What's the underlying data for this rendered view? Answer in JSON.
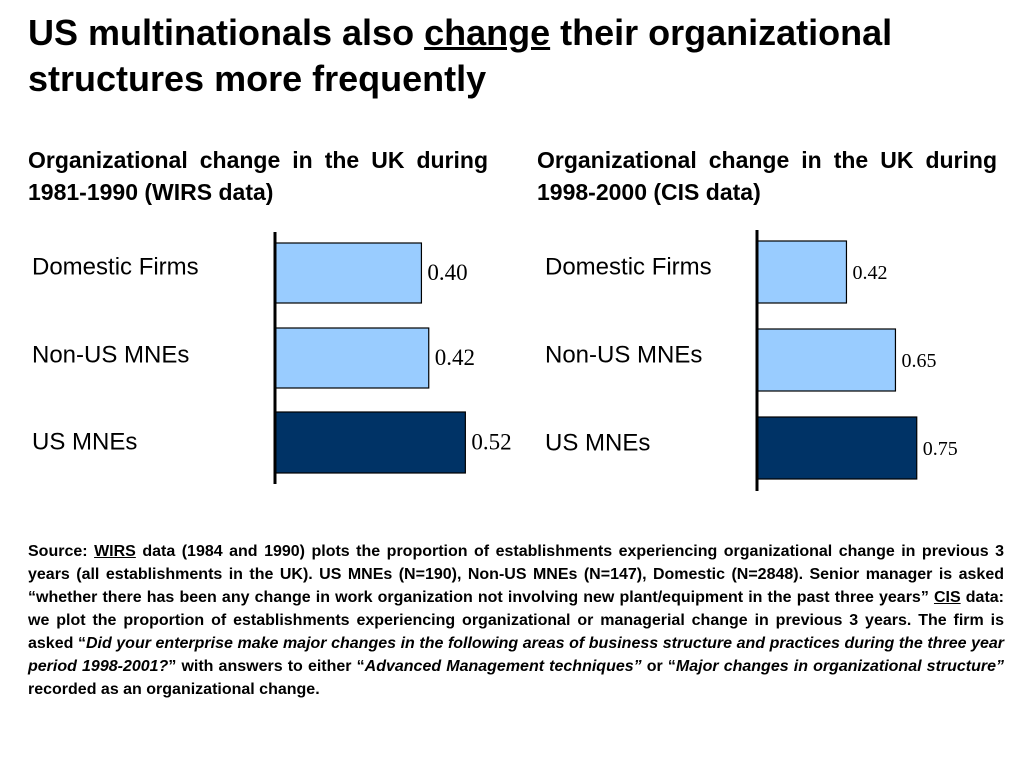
{
  "title": {
    "before": "US multinationals also ",
    "underlined": "change",
    "after": " their organizational structures more frequently"
  },
  "chart_data": [
    {
      "type": "bar",
      "orientation": "horizontal",
      "title": "Organizational change in the UK during 1981-1990 (WIRS data)",
      "categories": [
        "Domestic Firms",
        "Non-US MNEs",
        "US MNEs"
      ],
      "values": [
        0.4,
        0.42,
        0.52
      ],
      "value_labels": [
        "0.40",
        "0.42",
        "0.52"
      ],
      "colors": [
        "#99ccff",
        "#99ccff",
        "#003366"
      ],
      "xlim": [
        0,
        0.56
      ]
    },
    {
      "type": "bar",
      "orientation": "horizontal",
      "title": "Organizational change in the UK during 1998-2000 (CIS data)",
      "categories": [
        "Domestic Firms",
        "Non-US MNEs",
        "US MNEs"
      ],
      "values": [
        0.42,
        0.65,
        0.75
      ],
      "value_labels": [
        "0.42",
        "0.65",
        "0.75"
      ],
      "colors": [
        "#99ccff",
        "#99ccff",
        "#003366"
      ],
      "xlim": [
        0,
        1.0
      ]
    }
  ],
  "source": {
    "s1": "Source: ",
    "s2": "WIRS",
    "s3": " data (1984 and 1990) plots the proportion of establishments experiencing organizational change in previous 3 years (all establishments in the UK). US MNEs (N=190), Non-US MNEs (N=147), Domestic (N=2848). Senior manager is asked “whether there has been any change in work organization not involving new plant/equipment in the past three years” ",
    "s4": "CIS",
    "s5": " data: we plot the proportion of establishments experiencing organizational or managerial change in previous 3 years. The firm is asked “",
    "s6": "Did your enterprise make major changes in the following areas of business structure and practices during the three year period 1998-2001?",
    "s7": "” with answers to either “",
    "s8": "Advanced Management techniques”",
    "s9": " or “",
    "s10": "Major changes in organizational structure”",
    "s11": " recorded as an  organizational change."
  }
}
